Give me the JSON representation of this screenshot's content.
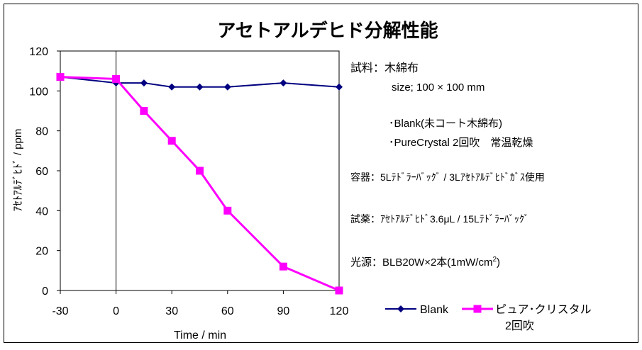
{
  "chart_data": {
    "type": "line",
    "title": "アセトアルデヒド分解性能",
    "xlabel": "Time / min",
    "ylabel": "ｱｾﾄｱﾙﾃﾞﾋﾄﾞ / ppm",
    "xlim": [
      -30,
      120
    ],
    "ylim": [
      0,
      120
    ],
    "x_ticks": [
      -30,
      0,
      30,
      60,
      90,
      120
    ],
    "y_ticks": [
      0,
      20,
      40,
      60,
      80,
      100,
      120
    ],
    "grid": false,
    "legend_position": "bottom-right",
    "series": [
      {
        "name": "Blank",
        "color": "#000080",
        "marker": "diamond",
        "x": [
          -30,
          0,
          15,
          30,
          45,
          60,
          90,
          120
        ],
        "y": [
          107,
          104,
          104,
          102,
          102,
          102,
          104,
          102
        ]
      },
      {
        "name": "ピュア･クリスタル 2回吹",
        "color": "#FF00FF",
        "marker": "square",
        "x": [
          -30,
          0,
          15,
          30,
          45,
          60,
          90,
          120
        ],
        "y": [
          107,
          106,
          90,
          75,
          60,
          40,
          12,
          0
        ]
      }
    ],
    "legend_labels": {
      "blank": "Blank",
      "pure_line1": "ピュア･クリスタル",
      "pure_line2": "2回吹"
    },
    "annotations": {
      "sample": "試料：木綿布",
      "size": "size; 100 × 100 mm",
      "blank_note": "･Blank(未コート木綿布)",
      "pure_note": "･PureCrystal 2回吹　常温乾燥",
      "container": "容器：5Lﾃﾄﾞﾗｰﾊﾞｯｸﾞ / 3Lｱｾﾄｱﾙﾃﾞﾋﾄﾞｶﾞｽ使用",
      "reagent": "試薬：ｱｾﾄｱﾙﾃﾞﾋﾄﾞ3.6μL / 15Lﾃﾄﾞﾗｰﾊﾞｯｸﾞ",
      "light_prefix": "光源：BLB20W×2本(1mW/cm",
      "light_sup": "2",
      "light_suffix": ")"
    }
  }
}
